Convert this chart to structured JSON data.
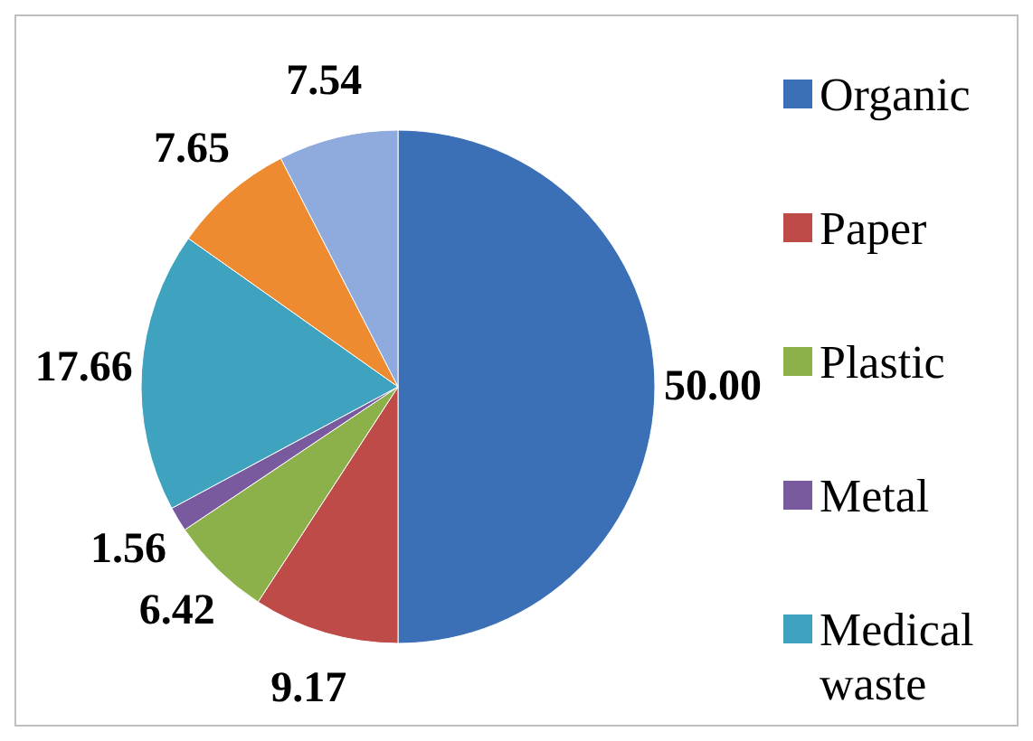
{
  "chart_data": {
    "type": "pie",
    "categories": [
      "Organic",
      "Paper",
      "Plastic",
      "Metal",
      "Medical waste",
      null,
      null
    ],
    "values": [
      50.0,
      9.17,
      6.42,
      1.56,
      17.66,
      7.65,
      7.54
    ],
    "colors": [
      "#3b6fb6",
      "#be4b48",
      "#8cb04a",
      "#7a5a9e",
      "#3fa3c0",
      "#ee8a2f",
      "#8faadc"
    ],
    "value_labels": [
      "50.00",
      "9.17",
      "6.42",
      "1.56",
      "17.66",
      "7.65",
      "7.54"
    ],
    "legend": "right"
  }
}
